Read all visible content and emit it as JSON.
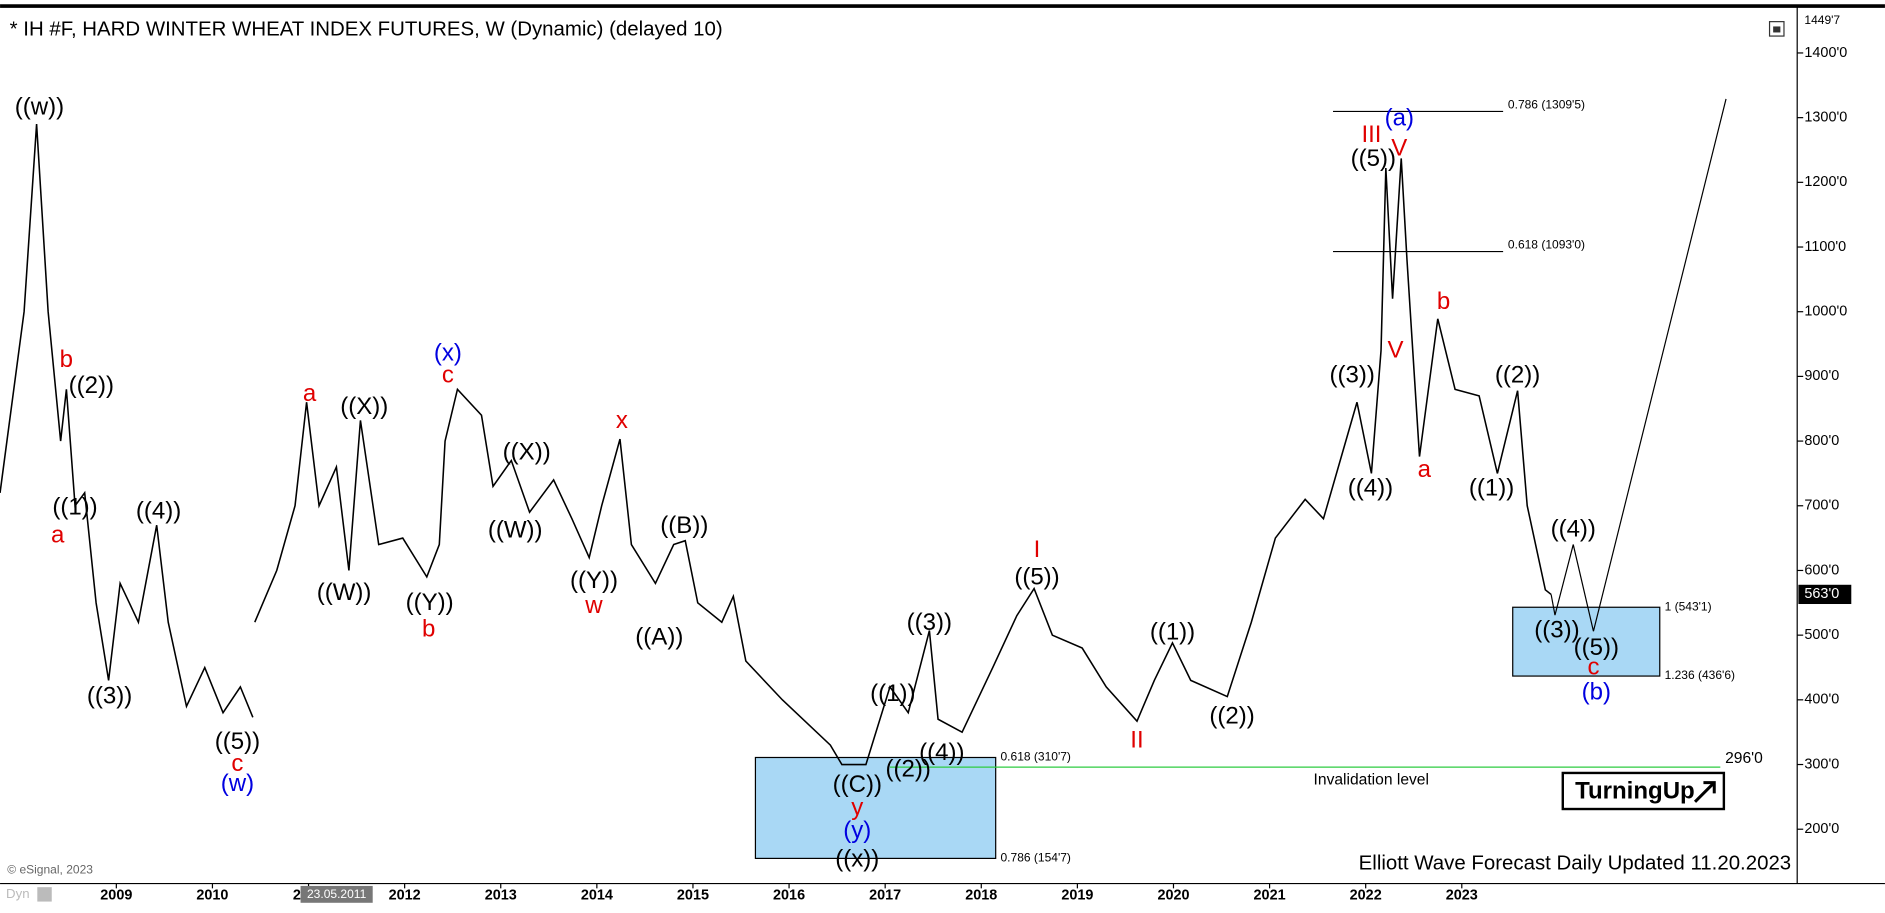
{
  "chart_data": {
    "type": "line",
    "title": "* IH #F, HARD WINTER WHEAT INDEX FUTURES, W (Dynamic) (delayed 10)",
    "footer": "Elliott Wave Forecast Daily Updated 11.20.2023",
    "copyright": "© eSignal, 2023",
    "corner_label": "Dyn",
    "crosshair_label": "23.05.2011",
    "logo": "TurningUp",
    "xlim": [
      2007.79,
      2026.49
    ],
    "ylim": [
      116,
      1467
    ],
    "xticks": [
      2009,
      2010,
      2011,
      2012,
      2013,
      2014,
      2015,
      2016,
      2017,
      2018,
      2019,
      2020,
      2021,
      2022,
      2023
    ],
    "yticks": [
      {
        "value": 200,
        "label": "200'0"
      },
      {
        "value": 300,
        "label": "300'0"
      },
      {
        "value": 400,
        "label": "400'0"
      },
      {
        "value": 500,
        "label": "500'0"
      },
      {
        "value": 600,
        "label": "600'0"
      },
      {
        "value": 700,
        "label": "700'0"
      },
      {
        "value": 800,
        "label": "800'0"
      },
      {
        "value": 900,
        "label": "900'0"
      },
      {
        "value": 1000,
        "label": "1000'0"
      },
      {
        "value": 1100,
        "label": "1100'0"
      },
      {
        "value": 1200,
        "label": "1200'0"
      },
      {
        "value": 1300,
        "label": "1300'0"
      },
      {
        "value": 1400,
        "label": "1400'0"
      }
    ],
    "axis_top": {
      "value": 1449.875,
      "label": "1449'7"
    },
    "last_price": {
      "value": 563,
      "label": "563'0"
    },
    "price": {
      "color": "#000000",
      "x": [
        2007.79,
        2008.04,
        2008.17,
        2008.29,
        2008.42,
        2008.48,
        2008.57,
        2008.67,
        2008.79,
        2008.92,
        2009.04,
        2009.23,
        2009.42,
        2009.54,
        2009.73,
        2009.92,
        2010.11,
        2010.29,
        2010.42,
        null,
        2010.44,
        2010.67,
        2010.86,
        2010.98,
        2011.11,
        2011.29,
        2011.42,
        2011.54,
        2011.73,
        2011.98,
        2012.23,
        2012.36,
        2012.42,
        2012.55,
        2012.8,
        2012.92,
        2013.11,
        2013.3,
        2013.55,
        2013.74,
        2013.92,
        2014.05,
        2014.24,
        2014.36,
        2014.61,
        2014.8,
        2014.92,
        2015.05,
        2015.3,
        2015.42,
        2015.55,
        2015.93,
        2016.43,
        2016.55,
        2016.8,
        2017.05,
        2017.24,
        2017.46,
        2017.55,
        2017.8,
        2018.12,
        2018.37,
        2018.55,
        2018.74,
        2019.05,
        2019.3,
        2019.62,
        2019.8,
        2019.99,
        2020.18,
        2020.56,
        2020.81,
        2021.06,
        2021.37,
        2021.56,
        2021.91,
        2022.06,
        2022.16,
        2022.21,
        2022.28,
        2022.37,
        2022.43,
        2022.56,
        2022.75,
        2022.93,
        2023.18,
        2023.37,
        2023.58,
        2023.68,
        2023.87,
        2023.93
      ],
      "values": [
        720,
        1000,
        1290,
        1000,
        800,
        880,
        700,
        720,
        550,
        430,
        580,
        520,
        670,
        520,
        390,
        450,
        380,
        420,
        373,
        null,
        520,
        600,
        700,
        860,
        700,
        760,
        600,
        832,
        640,
        650,
        590,
        640,
        800,
        880,
        840,
        730,
        770,
        690,
        740,
        680,
        620,
        700,
        803,
        640,
        580,
        640,
        646,
        550,
        520,
        560,
        460,
        400,
        330,
        300,
        300,
        420,
        380,
        507,
        370,
        350,
        450,
        530,
        572,
        500,
        480,
        420,
        367,
        430,
        488,
        430,
        405,
        520,
        650,
        710,
        680,
        860,
        750,
        940,
        1222,
        1020,
        1237,
        1080,
        776,
        989,
        880,
        870,
        750,
        878,
        700,
        570,
        563
      ]
    },
    "projection": {
      "color": "#000000",
      "x": [
        2023.93,
        2023.97,
        2024.16,
        2024.37,
        2025.75
      ],
      "values": [
        563,
        531,
        640,
        506,
        1329
      ]
    },
    "fib_lines": {
      "x": [
        2021.66,
        2023.43
      ],
      "levels": [
        {
          "value": 1309.625,
          "label": "0.786 (1309'5)"
        },
        {
          "value": 1093,
          "label": "0.618 (1093'0)"
        }
      ]
    },
    "zones": [
      {
        "color": "#a9d8f5",
        "x": [
          2023.53,
          2025.06
        ],
        "levels": [
          {
            "value": 543.125,
            "label": "1 (543'1)"
          },
          {
            "value": 436.75,
            "label": "1.236 (436'6)"
          }
        ]
      },
      {
        "color": "#a9d8f5",
        "x": [
          2015.65,
          2018.15
        ],
        "levels": [
          {
            "value": 310.875,
            "label": "0.618 (310'7)"
          },
          {
            "value": 154.875,
            "label": "0.786 (154'7)"
          }
        ]
      }
    ],
    "invalidation": {
      "value": 296,
      "label": "296'0",
      "text": "Invalidation level",
      "color": "#2ecc40",
      "x": [
        2017.05,
        2025.69
      ]
    },
    "annotations": [
      {
        "text": "((w))",
        "color": "#000000",
        "x": 2008.2,
        "y": 1315
      },
      {
        "text": "b",
        "color": "#e00000",
        "x": 2008.48,
        "y": 924
      },
      {
        "text": "((2))",
        "color": "#000000",
        "x": 2008.74,
        "y": 884
      },
      {
        "text": "((1))",
        "color": "#000000",
        "x": 2008.57,
        "y": 696
      },
      {
        "text": "a",
        "color": "#e00000",
        "x": 2008.39,
        "y": 653
      },
      {
        "text": "((4))",
        "color": "#000000",
        "x": 2009.44,
        "y": 690
      },
      {
        "text": "((3))",
        "color": "#000000",
        "x": 2008.93,
        "y": 404
      },
      {
        "text": "((5))",
        "color": "#000000",
        "x": 2010.26,
        "y": 334
      },
      {
        "text": "c",
        "color": "#e00000",
        "x": 2010.26,
        "y": 300
      },
      {
        "text": "(w)",
        "color": "#0000e0",
        "x": 2010.26,
        "y": 269
      },
      {
        "text": "a",
        "color": "#e00000",
        "x": 2011.01,
        "y": 872
      },
      {
        "text": "((X))",
        "color": "#000000",
        "x": 2011.58,
        "y": 852
      },
      {
        "text": "((W))",
        "color": "#000000",
        "x": 2011.37,
        "y": 564
      },
      {
        "text": "(x)",
        "color": "#0000e0",
        "x": 2012.45,
        "y": 934
      },
      {
        "text": "c",
        "color": "#e00000",
        "x": 2012.45,
        "y": 900
      },
      {
        "text": "((Y))",
        "color": "#000000",
        "x": 2012.26,
        "y": 549
      },
      {
        "text": "b",
        "color": "#e00000",
        "x": 2012.25,
        "y": 508
      },
      {
        "text": "((X))",
        "color": "#000000",
        "x": 2013.27,
        "y": 781
      },
      {
        "text": "((W))",
        "color": "#000000",
        "x": 2013.15,
        "y": 661
      },
      {
        "text": "x",
        "color": "#e00000",
        "x": 2014.26,
        "y": 830
      },
      {
        "text": "((Y))",
        "color": "#000000",
        "x": 2013.97,
        "y": 583
      },
      {
        "text": "w",
        "color": "#e00000",
        "x": 2013.97,
        "y": 544
      },
      {
        "text": "((B))",
        "color": "#000000",
        "x": 2014.91,
        "y": 668
      },
      {
        "text": "((A))",
        "color": "#000000",
        "x": 2014.65,
        "y": 495
      },
      {
        "text": "((C))",
        "color": "#000000",
        "x": 2016.71,
        "y": 267
      },
      {
        "text": "y",
        "color": "#e00000",
        "x": 2016.71,
        "y": 232
      },
      {
        "text": "(y)",
        "color": "#0000e0",
        "x": 2016.71,
        "y": 196
      },
      {
        "text": "((x))",
        "color": "#000000",
        "x": 2016.71,
        "y": 152
      },
      {
        "text": "((1))",
        "color": "#000000",
        "x": 2017.08,
        "y": 408
      },
      {
        "text": "((2))",
        "color": "#000000",
        "x": 2017.24,
        "y": 291
      },
      {
        "text": "((4))",
        "color": "#000000",
        "x": 2017.59,
        "y": 317
      },
      {
        "text": "((3))",
        "color": "#000000",
        "x": 2017.46,
        "y": 518
      },
      {
        "text": "I",
        "color": "#e00000",
        "x": 2018.58,
        "y": 631
      },
      {
        "text": "((5))",
        "color": "#000000",
        "x": 2018.58,
        "y": 588
      },
      {
        "text": "II",
        "color": "#e00000",
        "x": 2019.62,
        "y": 336
      },
      {
        "text": "((1))",
        "color": "#000000",
        "x": 2019.99,
        "y": 503
      },
      {
        "text": "((2))",
        "color": "#000000",
        "x": 2020.61,
        "y": 373
      },
      {
        "text": "((3))",
        "color": "#000000",
        "x": 2021.86,
        "y": 900
      },
      {
        "text": "((4))",
        "color": "#000000",
        "x": 2022.05,
        "y": 726
      },
      {
        "text": "((5))",
        "color": "#000000",
        "x": 2022.08,
        "y": 1235
      },
      {
        "text": "III",
        "color": "#e00000",
        "x": 2022.06,
        "y": 1272
      },
      {
        "text": "(a)",
        "color": "#0000e0",
        "x": 2022.35,
        "y": 1298
      },
      {
        "text": "V",
        "color": "#e00000",
        "x": 2022.35,
        "y": 1251
      },
      {
        "text": "V",
        "color": "#e00000",
        "x": 2022.31,
        "y": 939
      },
      {
        "text": "a",
        "color": "#e00000",
        "x": 2022.61,
        "y": 754
      },
      {
        "text": "b",
        "color": "#e00000",
        "x": 2022.81,
        "y": 1014
      },
      {
        "text": "((2))",
        "color": "#000000",
        "x": 2023.58,
        "y": 900
      },
      {
        "text": "((1))",
        "color": "#000000",
        "x": 2023.31,
        "y": 726
      },
      {
        "text": "((4))",
        "color": "#000000",
        "x": 2024.16,
        "y": 662
      },
      {
        "text": "((3))",
        "color": "#000000",
        "x": 2023.99,
        "y": 506
      },
      {
        "text": "((5))",
        "color": "#000000",
        "x": 2024.4,
        "y": 479
      },
      {
        "text": "c",
        "color": "#e00000",
        "x": 2024.37,
        "y": 449
      },
      {
        "text": "(b)",
        "color": "#0000e0",
        "x": 2024.4,
        "y": 410
      }
    ]
  }
}
